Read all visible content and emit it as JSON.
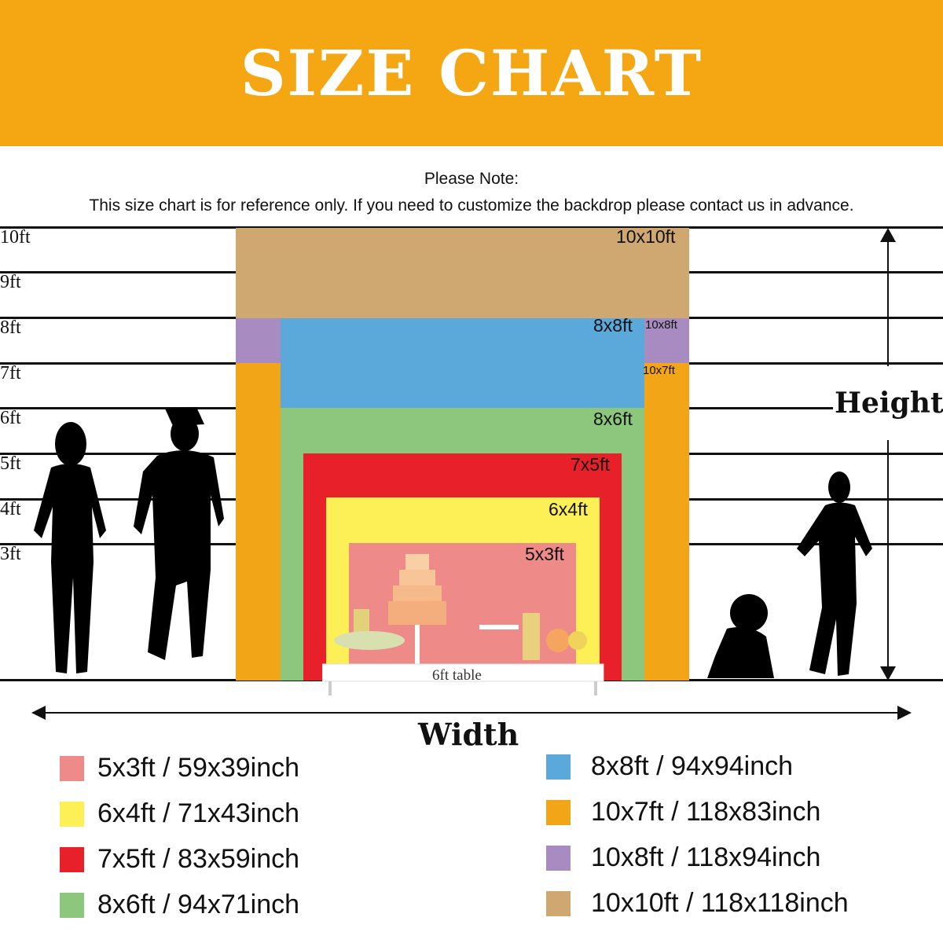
{
  "header": {
    "title": "SIZE CHART",
    "color": "#F4A712"
  },
  "note": {
    "heading": "Please Note:",
    "text": "This size chart is for reference only. If you need to customize the backdrop please contact us in advance."
  },
  "height_labels": [
    "10ft",
    "9ft",
    "8ft",
    "7ft",
    "6ft",
    "5ft",
    "4ft",
    "3ft"
  ],
  "backdrops": [
    {
      "label": "10x10ft",
      "color": "#CFA871"
    },
    {
      "label": "10x8ft",
      "color": "#A88BC0"
    },
    {
      "label": "10x7ft",
      "color": "#F2A516"
    },
    {
      "label": "8x8ft",
      "color": "#5BA8DA"
    },
    {
      "label": "8x6ft",
      "color": "#8DC77D"
    },
    {
      "label": "7x5ft",
      "color": "#E8202A"
    },
    {
      "label": "6x4ft",
      "color": "#FDEF56"
    },
    {
      "label": "5x3ft",
      "color": "#EE8A88"
    }
  ],
  "table_label": "6ft table",
  "axes": {
    "height": "Height",
    "width": "Width"
  },
  "legend": [
    {
      "text": "5x3ft / 59x39inch",
      "color": "#EE8A88"
    },
    {
      "text": "6x4ft / 71x43inch",
      "color": "#FDEF56"
    },
    {
      "text": "7x5ft / 83x59inch",
      "color": "#E8202A"
    },
    {
      "text": "8x6ft / 94x71inch",
      "color": "#8DC77D"
    },
    {
      "text": "8x8ft / 94x94inch",
      "color": "#5BA8DA"
    },
    {
      "text": "10x7ft / 118x83inch",
      "color": "#F2A516"
    },
    {
      "text": "10x8ft / 118x94inch",
      "color": "#A88BC0"
    },
    {
      "text": "10x10ft / 118x118inch",
      "color": "#CFA871"
    }
  ]
}
